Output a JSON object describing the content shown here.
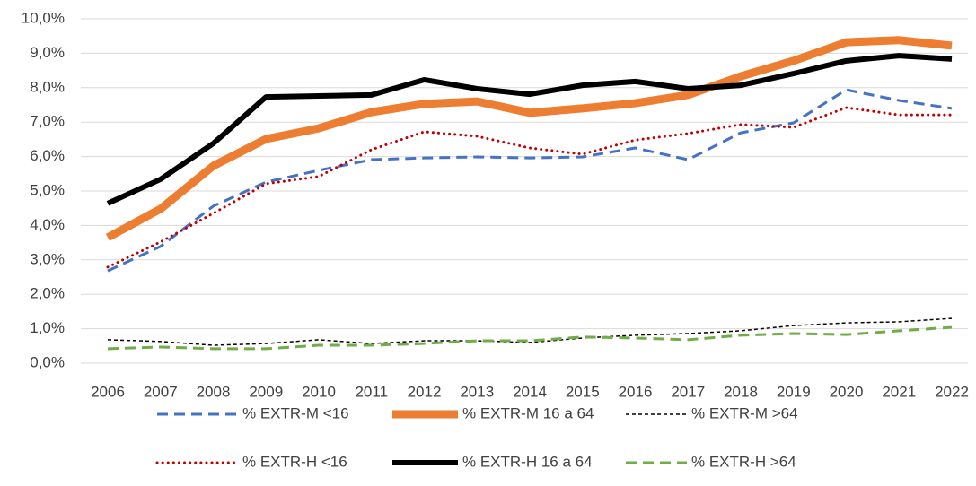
{
  "chart_data": {
    "type": "line",
    "categories": [
      "2006",
      "2007",
      "2008",
      "2009",
      "2010",
      "2011",
      "2012",
      "2013",
      "2014",
      "2015",
      "2016",
      "2017",
      "2018",
      "2019",
      "2020",
      "2021",
      "2022"
    ],
    "ylim": [
      0,
      10
    ],
    "yticks": [
      {
        "value": 0,
        "label": "0,0%"
      },
      {
        "value": 1,
        "label": "1,0%"
      },
      {
        "value": 2,
        "label": "2,0%"
      },
      {
        "value": 3,
        "label": "3,0%"
      },
      {
        "value": 4,
        "label": "4,0%"
      },
      {
        "value": 5,
        "label": "5,0%"
      },
      {
        "value": 6,
        "label": "6,0%"
      },
      {
        "value": 7,
        "label": "7,0%"
      },
      {
        "value": 8,
        "label": "8,0%"
      },
      {
        "value": 9,
        "label": "9,0%"
      },
      {
        "value": 10,
        "label": "10,0%"
      }
    ],
    "grid": true,
    "legend": "bottom",
    "series": [
      {
        "name": "% EXTR-M <16",
        "color": "#4472c4",
        "dash": "dashed",
        "width": 3,
        "values": [
          2.68,
          3.39,
          4.56,
          5.26,
          5.6,
          5.91,
          5.96,
          5.99,
          5.96,
          5.99,
          6.25,
          5.91,
          6.69,
          6.98,
          7.94,
          7.63,
          7.4
        ]
      },
      {
        "name": "% EXTR-M 16 a 64",
        "color": "#ed7d31",
        "dash": "solid",
        "width": 9,
        "values": [
          3.65,
          4.48,
          5.73,
          6.51,
          6.82,
          7.29,
          7.53,
          7.6,
          7.27,
          7.4,
          7.55,
          7.79,
          8.33,
          8.78,
          9.32,
          9.38,
          9.22
        ]
      },
      {
        "name": "% EXTR-M >64",
        "color": "#000000",
        "dash": "short-dash",
        "width": 1.5,
        "values": [
          0.68,
          0.63,
          0.52,
          0.57,
          0.68,
          0.57,
          0.65,
          0.65,
          0.6,
          0.73,
          0.81,
          0.86,
          0.94,
          1.09,
          1.17,
          1.2,
          1.3
        ]
      },
      {
        "name": "% EXTR-H <16",
        "color": "#c00000",
        "dash": "dotted",
        "width": 3,
        "values": [
          2.79,
          3.52,
          4.35,
          5.21,
          5.42,
          6.2,
          6.72,
          6.59,
          6.25,
          6.07,
          6.48,
          6.67,
          6.93,
          6.85,
          7.42,
          7.21,
          7.21
        ]
      },
      {
        "name": "% EXTR-H 16 a 64",
        "color": "#000000",
        "dash": "solid",
        "width": 6,
        "values": [
          4.64,
          5.34,
          6.38,
          7.73,
          7.76,
          7.79,
          8.23,
          7.97,
          7.81,
          8.07,
          8.18,
          7.97,
          8.07,
          8.41,
          8.78,
          8.93,
          8.83
        ]
      },
      {
        "name": "% EXTR-H >64",
        "color": "#70ad47",
        "dash": "dashed",
        "width": 3,
        "values": [
          0.42,
          0.47,
          0.42,
          0.42,
          0.52,
          0.52,
          0.57,
          0.65,
          0.65,
          0.76,
          0.73,
          0.68,
          0.81,
          0.86,
          0.83,
          0.94,
          1.04
        ]
      }
    ]
  }
}
